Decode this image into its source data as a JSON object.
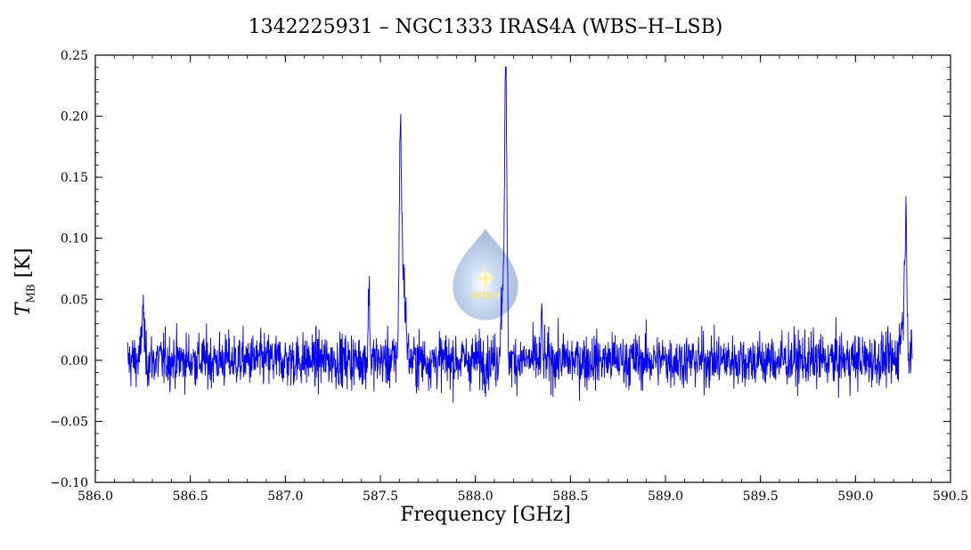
{
  "chart_data": {
    "type": "line",
    "title": "1342225931 – NGC1333 IRAS4A (WBS–H–LSB)",
    "xlabel": "Frequency [GHz]",
    "ylabel_symbol": "T",
    "ylabel_subscript": "MB",
    "ylabel_unit": "[K]",
    "xlim": [
      586.0,
      590.5
    ],
    "ylim": [
      -0.1,
      0.25
    ],
    "xticks": [
      "586.0",
      "586.5",
      "587.0",
      "587.5",
      "588.0",
      "588.5",
      "589.0",
      "589.5",
      "590.0",
      "590.5"
    ],
    "yticks": [
      "−0.10",
      "−0.05",
      "0.00",
      "0.05",
      "0.10",
      "0.15",
      "0.20",
      "0.25"
    ],
    "xtick_values": [
      586.0,
      586.5,
      587.0,
      587.5,
      588.0,
      588.5,
      589.0,
      589.5,
      590.0,
      590.5
    ],
    "ytick_values": [
      -0.1,
      -0.05,
      0.0,
      0.05,
      0.1,
      0.15,
      0.2,
      0.25
    ],
    "data_range": [
      586.17,
      590.3
    ],
    "noise_rms": 0.011,
    "line_color": "#0000ee",
    "peaks": [
      {
        "x": 586.25,
        "amp": 0.045,
        "width": 0.006
      },
      {
        "x": 587.44,
        "amp": 0.06,
        "width": 0.004
      },
      {
        "x": 587.605,
        "amp": 0.16,
        "width": 0.006
      },
      {
        "x": 587.62,
        "amp": 0.07,
        "width": 0.012
      },
      {
        "x": 588.16,
        "amp": 0.215,
        "width": 0.006
      },
      {
        "x": 588.145,
        "amp": 0.06,
        "width": 0.01
      },
      {
        "x": 588.35,
        "amp": 0.04,
        "width": 0.003
      },
      {
        "x": 590.265,
        "amp": 0.1,
        "width": 0.006
      },
      {
        "x": 590.25,
        "amp": 0.03,
        "width": 0.015
      }
    ],
    "watermark_text": "WISH"
  }
}
